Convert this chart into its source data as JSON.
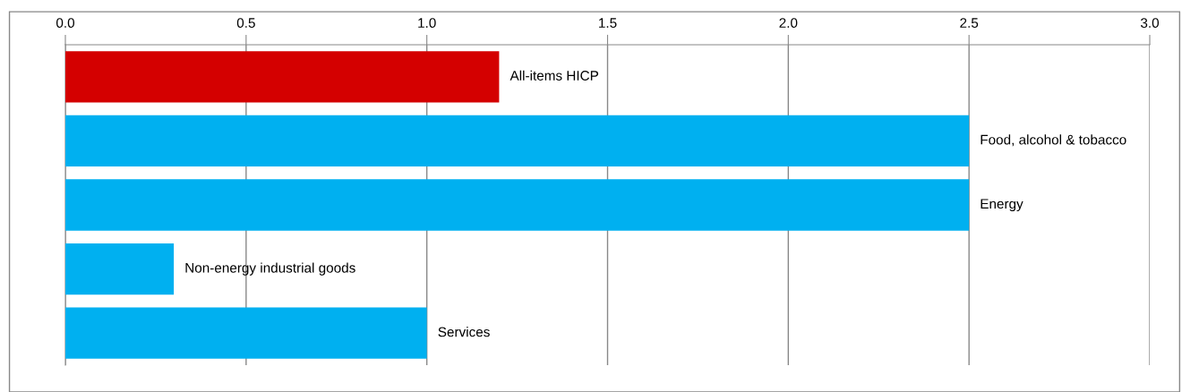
{
  "chart_data": {
    "type": "bar",
    "orientation": "horizontal",
    "categories": [
      "All-items HICP",
      "Food, alcohol & tobacco",
      "Energy",
      "Non-energy industrial goods",
      "Services"
    ],
    "values": [
      1.2,
      2.5,
      2.5,
      0.3,
      1.0
    ],
    "colors": [
      "#d40000",
      "#00b0f0",
      "#00b0f0",
      "#00b0f0",
      "#00b0f0"
    ],
    "xlim": [
      0.0,
      3.0
    ],
    "xticks": [
      {
        "value": 0,
        "label": "0.0"
      },
      {
        "value": 0.5,
        "label": "0.5"
      },
      {
        "value": 1,
        "label": "1.0"
      },
      {
        "value": 1.5,
        "label": "1.5"
      },
      {
        "value": 2,
        "label": "2.0"
      },
      {
        "value": 2.5,
        "label": "2.5"
      },
      {
        "value": 3,
        "label": "3.0"
      }
    ],
    "grid": "x",
    "legend": false
  }
}
